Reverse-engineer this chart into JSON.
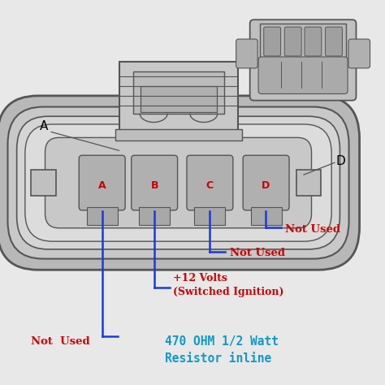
{
  "bg_color": "#e8e8e8",
  "line_color": "#555555",
  "wire_color": "#1a3adb",
  "label_red": "#cc0000",
  "label_blue": "#1199cc",
  "pins": [
    "A",
    "B",
    "C",
    "D"
  ],
  "figsize": [
    4.74,
    4.74
  ],
  "dpi": 100
}
